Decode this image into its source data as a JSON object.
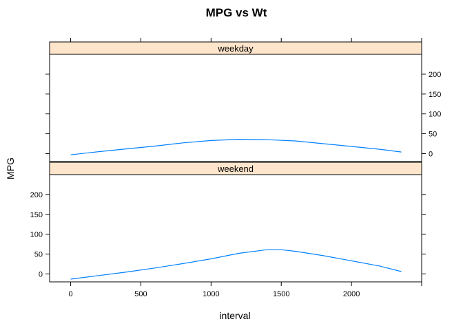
{
  "chart_data": {
    "type": "line",
    "title": "MPG vs Wt",
    "xlabel": "interval",
    "ylabel": "MPG",
    "xlim": [
      -150,
      2500
    ],
    "ylim": [
      -20,
      250
    ],
    "x_ticks": [
      0,
      500,
      1000,
      1500,
      2000
    ],
    "x_tick_labels": [
      "0",
      "500",
      "1000",
      "1500",
      "2000"
    ],
    "y_ticks": [
      0,
      50,
      100,
      150,
      200
    ],
    "y_tick_labels": [
      "0",
      "50",
      "100",
      "150",
      "200"
    ],
    "grid": false,
    "line_color": "#0080ff",
    "strip_color": "#ffe5cc",
    "panels": [
      {
        "strip": "weekday",
        "x": [
          0,
          200,
          400,
          600,
          800,
          1000,
          1200,
          1400,
          1600,
          1800,
          2000,
          2200,
          2355
        ],
        "y": [
          -3,
          5,
          12,
          19,
          27,
          33,
          36,
          35,
          32,
          25,
          18,
          11,
          4
        ]
      },
      {
        "strip": "weekend",
        "x": [
          0,
          200,
          400,
          600,
          800,
          1000,
          1200,
          1400,
          1500,
          1600,
          1800,
          2000,
          2200,
          2355
        ],
        "y": [
          -13,
          -4,
          5,
          15,
          26,
          38,
          52,
          61,
          61,
          57,
          46,
          33,
          20,
          6
        ]
      }
    ]
  }
}
